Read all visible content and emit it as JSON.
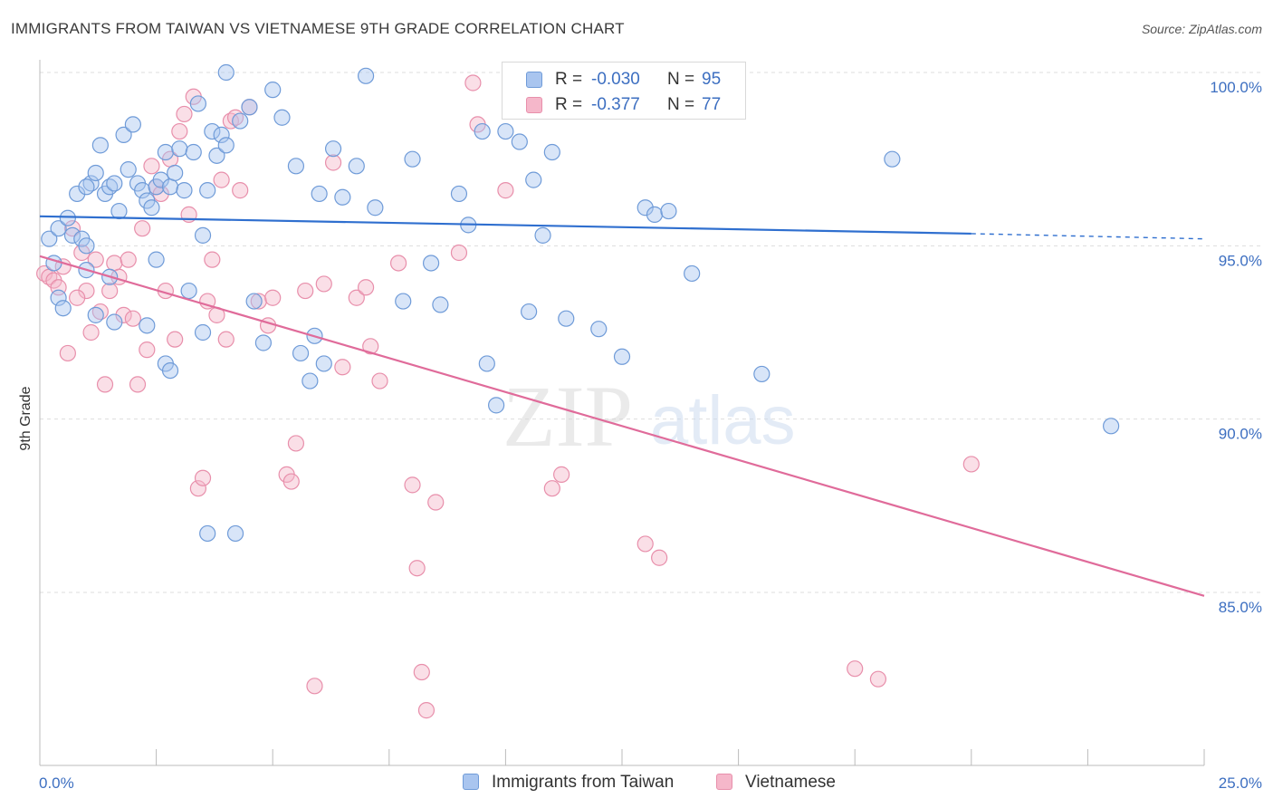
{
  "header": {
    "title": "IMMIGRANTS FROM TAIWAN VS VIETNAMESE 9TH GRADE CORRELATION CHART",
    "source": "Source: ZipAtlas.com"
  },
  "watermark": {
    "zip": "ZIP",
    "atlas": "atlas"
  },
  "legend": {
    "rows": [
      {
        "r_label": "R =",
        "r_value": "-0.030",
        "n_label": "N =",
        "n_value": "95",
        "color": "#a9c5ef"
      },
      {
        "r_label": "R =",
        "r_value": "-0.377",
        "n_label": "N =",
        "n_value": "77",
        "color": "#f5b7ca"
      }
    ]
  },
  "bottom_legend": [
    {
      "label": "Immigrants from Taiwan",
      "color": "#a9c5ef"
    },
    {
      "label": "Vietnamese",
      "color": "#f5b7ca"
    }
  ],
  "colors": {
    "blue_fill": "#a9c5ef",
    "blue_stroke": "#6f9bd8",
    "blue_line": "#2f6fcf",
    "pink_fill": "#f5b7ca",
    "pink_stroke": "#e88fab",
    "pink_line": "#e06b9a",
    "axis_label": "#3d6fc1",
    "grid": "#dddddd"
  },
  "chart_data": {
    "type": "scatter",
    "title": "IMMIGRANTS FROM TAIWAN VS VIETNAMESE 9TH GRADE CORRELATION CHART",
    "xlabel": "",
    "ylabel": "9th Grade",
    "xlim": [
      0,
      25
    ],
    "ylim": [
      80,
      100.5
    ],
    "x_tick_labels": [
      "0.0%",
      "25.0%"
    ],
    "y_ticks": [
      85,
      90,
      95,
      100
    ],
    "y_tick_labels": [
      "85.0%",
      "90.0%",
      "95.0%",
      "100.0%"
    ],
    "grid": true,
    "series": [
      {
        "name": "Immigrants from Taiwan",
        "r": -0.03,
        "n": 95,
        "trend": {
          "x": [
            0,
            20
          ],
          "y": [
            95.85,
            95.35
          ],
          "dashed_to": [
            25,
            95.2
          ]
        },
        "points": [
          [
            0.2,
            95.2
          ],
          [
            0.3,
            94.5
          ],
          [
            0.4,
            93.5
          ],
          [
            0.5,
            93.2
          ],
          [
            0.4,
            95.5
          ],
          [
            0.6,
            95.8
          ],
          [
            0.7,
            95.3
          ],
          [
            0.8,
            96.5
          ],
          [
            0.9,
            95.2
          ],
          [
            1.0,
            95.0
          ],
          [
            1.1,
            96.8
          ],
          [
            1.2,
            97.1
          ],
          [
            1.0,
            96.7
          ],
          [
            1.0,
            94.3
          ],
          [
            1.3,
            97.9
          ],
          [
            1.4,
            96.5
          ],
          [
            1.5,
            96.7
          ],
          [
            1.6,
            96.8
          ],
          [
            1.7,
            96.0
          ],
          [
            1.8,
            98.2
          ],
          [
            1.9,
            97.2
          ],
          [
            1.5,
            94.1
          ],
          [
            1.6,
            92.8
          ],
          [
            2.0,
            98.5
          ],
          [
            2.1,
            96.8
          ],
          [
            2.2,
            96.6
          ],
          [
            2.3,
            96.3
          ],
          [
            2.4,
            96.1
          ],
          [
            2.5,
            96.7
          ],
          [
            2.6,
            96.9
          ],
          [
            2.7,
            97.7
          ],
          [
            2.3,
            92.7
          ],
          [
            2.8,
            96.7
          ],
          [
            2.9,
            97.1
          ],
          [
            3.0,
            97.8
          ],
          [
            3.1,
            96.6
          ],
          [
            2.5,
            94.6
          ],
          [
            2.7,
            91.6
          ],
          [
            2.8,
            91.4
          ],
          [
            3.3,
            97.7
          ],
          [
            3.4,
            99.1
          ],
          [
            3.5,
            95.3
          ],
          [
            3.6,
            96.6
          ],
          [
            3.2,
            93.7
          ],
          [
            3.5,
            92.5
          ],
          [
            3.7,
            98.3
          ],
          [
            3.8,
            97.6
          ],
          [
            3.9,
            98.2
          ],
          [
            4.0,
            97.9
          ],
          [
            4.0,
            100.0
          ],
          [
            3.6,
            86.7
          ],
          [
            4.2,
            86.7
          ],
          [
            4.3,
            98.6
          ],
          [
            4.5,
            99.0
          ],
          [
            4.6,
            93.4
          ],
          [
            4.8,
            92.2
          ],
          [
            5.0,
            99.5
          ],
          [
            5.2,
            98.7
          ],
          [
            5.5,
            97.3
          ],
          [
            5.6,
            91.9
          ],
          [
            5.8,
            91.1
          ],
          [
            5.9,
            92.4
          ],
          [
            6.0,
            96.5
          ],
          [
            6.1,
            91.6
          ],
          [
            6.3,
            97.8
          ],
          [
            6.5,
            96.4
          ],
          [
            6.8,
            97.3
          ],
          [
            7.0,
            99.9
          ],
          [
            7.2,
            96.1
          ],
          [
            7.8,
            93.4
          ],
          [
            8.0,
            97.5
          ],
          [
            8.4,
            94.5
          ],
          [
            8.6,
            93.3
          ],
          [
            9.0,
            96.5
          ],
          [
            9.2,
            95.6
          ],
          [
            9.5,
            98.3
          ],
          [
            9.6,
            91.6
          ],
          [
            9.8,
            90.4
          ],
          [
            10.0,
            98.3
          ],
          [
            10.3,
            98.0
          ],
          [
            10.5,
            93.1
          ],
          [
            10.6,
            96.9
          ],
          [
            10.8,
            95.3
          ],
          [
            11.0,
            97.7
          ],
          [
            11.3,
            92.9
          ],
          [
            12.0,
            92.6
          ],
          [
            12.5,
            91.8
          ],
          [
            13.0,
            96.1
          ],
          [
            13.2,
            95.9
          ],
          [
            13.5,
            96.0
          ],
          [
            14.0,
            94.2
          ],
          [
            15.5,
            91.3
          ],
          [
            18.3,
            97.5
          ],
          [
            23.0,
            89.8
          ],
          [
            1.2,
            93.0
          ]
        ]
      },
      {
        "name": "Vietnamese",
        "r": -0.377,
        "n": 77,
        "trend": {
          "x": [
            0,
            25
          ],
          "y": [
            94.7,
            84.9
          ]
        },
        "points": [
          [
            0.1,
            94.2
          ],
          [
            0.2,
            94.1
          ],
          [
            0.3,
            94.0
          ],
          [
            0.4,
            93.8
          ],
          [
            0.5,
            94.4
          ],
          [
            0.7,
            95.5
          ],
          [
            0.9,
            94.8
          ],
          [
            1.0,
            93.7
          ],
          [
            1.1,
            92.5
          ],
          [
            1.2,
            94.6
          ],
          [
            1.3,
            93.1
          ],
          [
            1.4,
            91.0
          ],
          [
            1.5,
            93.7
          ],
          [
            1.6,
            94.5
          ],
          [
            1.7,
            94.1
          ],
          [
            1.8,
            93.0
          ],
          [
            1.9,
            94.6
          ],
          [
            2.0,
            92.9
          ],
          [
            2.1,
            91.0
          ],
          [
            2.2,
            95.5
          ],
          [
            2.3,
            92.0
          ],
          [
            2.4,
            97.3
          ],
          [
            2.5,
            96.7
          ],
          [
            2.6,
            96.5
          ],
          [
            2.7,
            93.7
          ],
          [
            2.8,
            97.5
          ],
          [
            2.9,
            92.3
          ],
          [
            3.0,
            98.3
          ],
          [
            3.1,
            98.8
          ],
          [
            3.2,
            95.9
          ],
          [
            3.3,
            99.3
          ],
          [
            3.4,
            88.0
          ],
          [
            3.5,
            88.3
          ],
          [
            3.6,
            93.4
          ],
          [
            3.7,
            94.6
          ],
          [
            3.8,
            93.0
          ],
          [
            3.9,
            96.9
          ],
          [
            4.0,
            92.3
          ],
          [
            4.1,
            98.6
          ],
          [
            4.2,
            98.7
          ],
          [
            4.3,
            96.6
          ],
          [
            4.5,
            99.0
          ],
          [
            4.7,
            93.4
          ],
          [
            4.9,
            92.7
          ],
          [
            5.0,
            93.5
          ],
          [
            5.3,
            88.4
          ],
          [
            5.4,
            88.2
          ],
          [
            5.5,
            89.3
          ],
          [
            5.7,
            93.7
          ],
          [
            5.9,
            82.3
          ],
          [
            6.1,
            93.9
          ],
          [
            6.3,
            97.4
          ],
          [
            6.5,
            91.5
          ],
          [
            6.8,
            93.5
          ],
          [
            7.0,
            93.8
          ],
          [
            7.1,
            92.1
          ],
          [
            7.3,
            91.1
          ],
          [
            7.7,
            94.5
          ],
          [
            8.0,
            88.1
          ],
          [
            8.1,
            85.7
          ],
          [
            8.2,
            82.7
          ],
          [
            8.3,
            81.6
          ],
          [
            8.5,
            87.6
          ],
          [
            9.0,
            94.8
          ],
          [
            9.3,
            99.7
          ],
          [
            9.4,
            98.5
          ],
          [
            10.0,
            96.6
          ],
          [
            11.0,
            88.0
          ],
          [
            11.2,
            88.4
          ],
          [
            13.0,
            86.4
          ],
          [
            13.3,
            86.0
          ],
          [
            14.3,
            100.0
          ],
          [
            17.5,
            82.8
          ],
          [
            18.0,
            82.5
          ],
          [
            20.0,
            88.7
          ],
          [
            0.6,
            91.9
          ],
          [
            0.8,
            93.5
          ]
        ]
      }
    ]
  }
}
